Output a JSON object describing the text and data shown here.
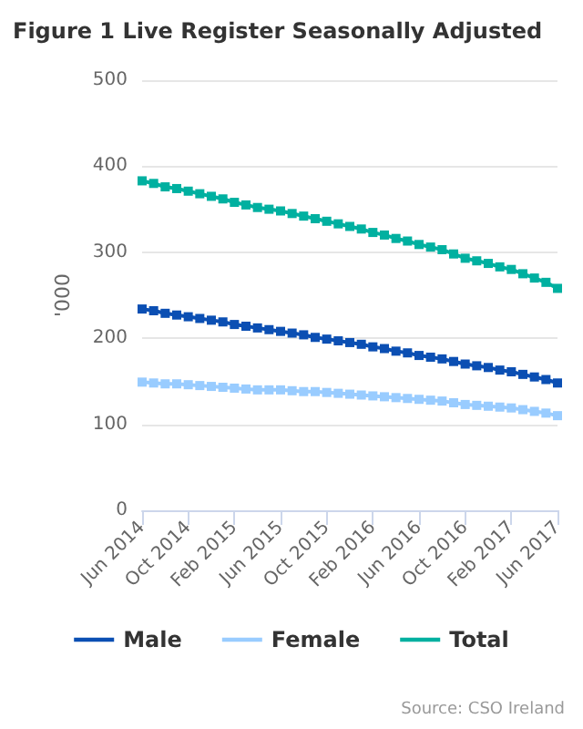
{
  "chart_data": {
    "type": "line",
    "title": "Figure 1 Live Register Seasonally Adjusted",
    "ylabel": "'000",
    "categories": [
      "Jun 2014",
      null,
      null,
      null,
      "Oct 2014",
      null,
      null,
      null,
      "Feb 2015",
      null,
      null,
      null,
      "Jun 2015",
      null,
      null,
      null,
      "Oct 2015",
      null,
      null,
      null,
      "Feb 2016",
      null,
      null,
      null,
      "Jun 2016",
      null,
      null,
      null,
      "Oct 2016",
      null,
      null,
      null,
      "Feb 2017",
      null,
      null,
      null,
      "Jun 2017"
    ],
    "series": [
      {
        "name": "Male",
        "color": "#0b4fb3",
        "values": [
          234,
          232,
          229,
          227,
          225,
          223,
          221,
          219,
          216,
          214,
          212,
          210,
          208,
          206,
          204,
          201,
          199,
          197,
          195,
          193,
          190,
          188,
          185,
          183,
          180,
          178,
          176,
          173,
          170,
          168,
          166,
          163,
          161,
          158,
          155,
          152,
          148
        ]
      },
      {
        "name": "Female",
        "color": "#99ccff",
        "values": [
          149,
          148,
          147,
          147,
          146,
          145,
          144,
          143,
          142,
          141,
          140,
          140,
          140,
          139,
          138,
          138,
          137,
          136,
          135,
          134,
          133,
          132,
          131,
          130,
          129,
          128,
          127,
          125,
          123,
          122,
          121,
          120,
          119,
          117,
          115,
          113,
          110
        ]
      },
      {
        "name": "Total",
        "color": "#00b0a0",
        "values": [
          383,
          380,
          376,
          374,
          371,
          368,
          365,
          362,
          358,
          355,
          352,
          350,
          348,
          345,
          342,
          339,
          336,
          333,
          330,
          327,
          323,
          320,
          316,
          313,
          309,
          306,
          303,
          298,
          293,
          290,
          287,
          283,
          280,
          275,
          270,
          265,
          258
        ]
      }
    ],
    "ylim": [
      0,
      500
    ],
    "yticks": [
      0,
      100,
      200,
      300,
      400,
      500
    ],
    "grid": "y",
    "legend": "bottom",
    "marker": "square",
    "line_style": "solid",
    "annotations": [
      "Source: CSO Ireland"
    ]
  }
}
